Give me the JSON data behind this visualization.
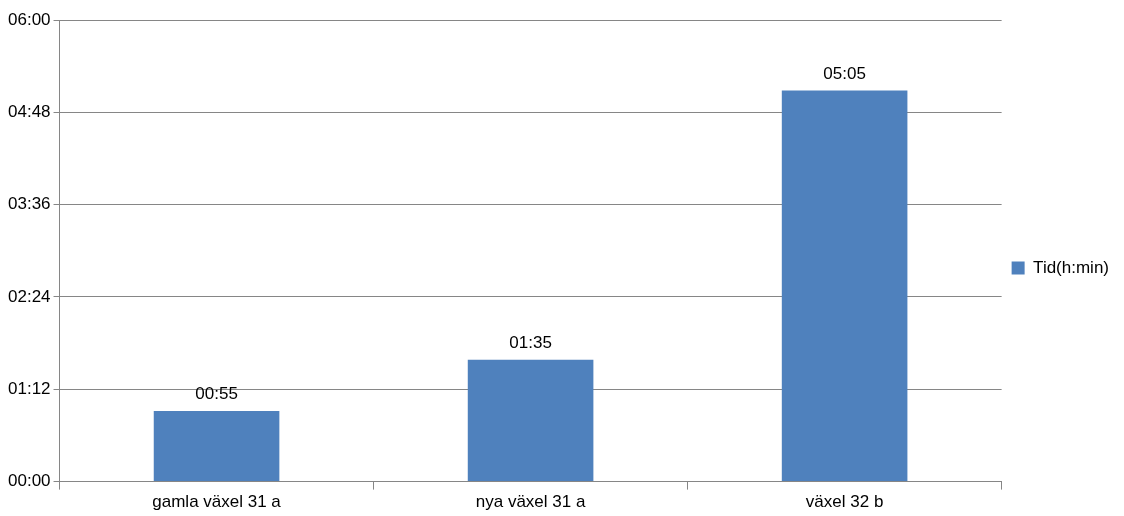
{
  "chart_data": {
    "type": "bar",
    "categories": [
      "gamla växel 31 a",
      "nya växel 31 a",
      "växel 32 b"
    ],
    "series": [
      {
        "name": "Tid(h:min)",
        "color": "#4f81bd",
        "values": [
          0.917,
          1.583,
          5.083
        ],
        "value_labels": [
          "00:55",
          "01:35",
          "05:05"
        ]
      }
    ],
    "ylim": [
      0,
      6
    ],
    "yticks": [
      {
        "value": 0,
        "label": "00:00"
      },
      {
        "value": 1.2,
        "label": "01:12"
      },
      {
        "value": 2.4,
        "label": "02:24"
      },
      {
        "value": 3.6,
        "label": "03:36"
      },
      {
        "value": 4.8,
        "label": "04:48"
      },
      {
        "value": 6,
        "label": "06:00"
      }
    ],
    "grid": "y",
    "legend": "right"
  }
}
